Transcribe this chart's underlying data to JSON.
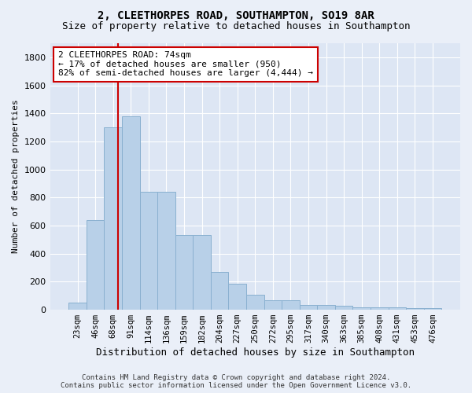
{
  "title1": "2, CLEETHORPES ROAD, SOUTHAMPTON, SO19 8AR",
  "title2": "Size of property relative to detached houses in Southampton",
  "xlabel": "Distribution of detached houses by size in Southampton",
  "ylabel": "Number of detached properties",
  "categories": [
    "23sqm",
    "46sqm",
    "68sqm",
    "91sqm",
    "114sqm",
    "136sqm",
    "159sqm",
    "182sqm",
    "204sqm",
    "227sqm",
    "250sqm",
    "272sqm",
    "295sqm",
    "317sqm",
    "340sqm",
    "363sqm",
    "385sqm",
    "408sqm",
    "431sqm",
    "453sqm",
    "476sqm"
  ],
  "values": [
    50,
    640,
    1300,
    1380,
    840,
    840,
    530,
    530,
    270,
    185,
    105,
    65,
    65,
    35,
    35,
    30,
    15,
    15,
    15,
    10,
    10
  ],
  "bar_color": "#b8d0e8",
  "bar_edge_color": "#8ab0d0",
  "vline_color": "#cc0000",
  "vline_pos": 2.26,
  "ann_text_line1": "2 CLEETHORPES ROAD: 74sqm",
  "ann_text_line2": "← 17% of detached houses are smaller (950)",
  "ann_text_line3": "82% of semi-detached houses are larger (4,444) →",
  "ylim": [
    0,
    1900
  ],
  "yticks": [
    0,
    200,
    400,
    600,
    800,
    1000,
    1200,
    1400,
    1600,
    1800
  ],
  "footer1": "Contains HM Land Registry data © Crown copyright and database right 2024.",
  "footer2": "Contains public sector information licensed under the Open Government Licence v3.0.",
  "bg_color": "#eaeff8",
  "plot_bg_color": "#dde6f4",
  "title1_fontsize": 10,
  "title2_fontsize": 9,
  "xlabel_fontsize": 9,
  "ylabel_fontsize": 8,
  "tick_fontsize": 8,
  "xtick_fontsize": 7.5,
  "footer_fontsize": 6.5
}
